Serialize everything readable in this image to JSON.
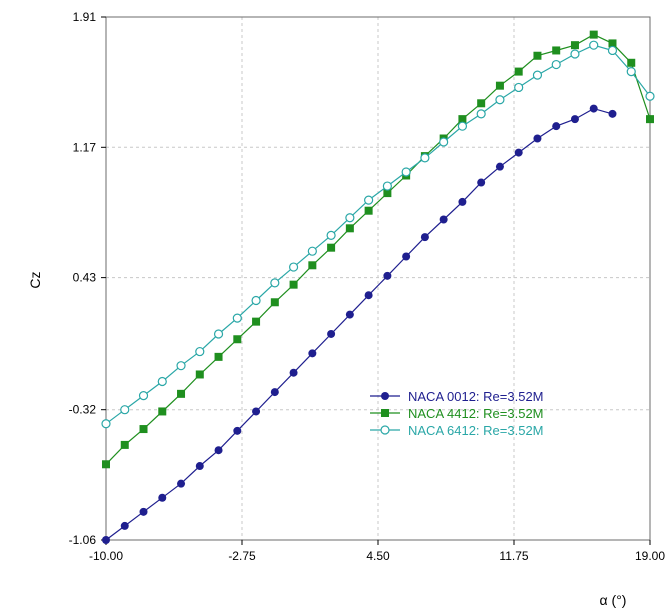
{
  "chart_data": {
    "type": "line",
    "title": "",
    "xlabel": "α (°)",
    "ylabel": "Cz",
    "xlim": [
      -10.0,
      19.0
    ],
    "ylim": [
      -1.06,
      1.91
    ],
    "xticks": [
      "-10.00",
      "-2.75",
      "4.50",
      "11.75",
      "19.00"
    ],
    "yticks": [
      "1.91",
      "1.17",
      "0.43",
      "-0.32",
      "-1.06"
    ],
    "grid": true,
    "legend_position": "lower-right",
    "series": [
      {
        "name": "NACA 0012: Re=3.52M",
        "color": "#1f1f8f",
        "marker": "filled-circle",
        "x": [
          -10,
          -9,
          -8,
          -7,
          -6,
          -5,
          -4,
          -3,
          -2,
          -1,
          0,
          1,
          2,
          3,
          4,
          5,
          6,
          7,
          8,
          9,
          10,
          11,
          12,
          13,
          14,
          15,
          16,
          17
        ],
        "y": [
          -1.06,
          -0.98,
          -0.9,
          -0.82,
          -0.74,
          -0.64,
          -0.55,
          -0.44,
          -0.33,
          -0.22,
          -0.11,
          0.0,
          0.11,
          0.22,
          0.33,
          0.44,
          0.55,
          0.66,
          0.76,
          0.86,
          0.97,
          1.06,
          1.14,
          1.22,
          1.29,
          1.33,
          1.39,
          1.36
        ]
      },
      {
        "name": "NACA 4412: Re=3.52M",
        "color": "#1f8f1f",
        "marker": "filled-square",
        "x": [
          -10,
          -9,
          -8,
          -7,
          -6,
          -5,
          -4,
          -3,
          -2,
          -1,
          0,
          1,
          2,
          3,
          4,
          5,
          6,
          7,
          8,
          9,
          10,
          11,
          12,
          13,
          14,
          15,
          16,
          17,
          18,
          19
        ],
        "y": [
          -0.63,
          -0.52,
          -0.43,
          -0.33,
          -0.23,
          -0.12,
          -0.02,
          0.08,
          0.18,
          0.29,
          0.39,
          0.5,
          0.6,
          0.71,
          0.81,
          0.91,
          1.01,
          1.12,
          1.22,
          1.33,
          1.42,
          1.52,
          1.6,
          1.69,
          1.72,
          1.75,
          1.81,
          1.76,
          1.65,
          1.33
        ]
      },
      {
        "name": "NACA 6412: Re=3.52M",
        "color": "#2aa7a7",
        "marker": "hollow-circle",
        "x": [
          -10,
          -9,
          -8,
          -7,
          -6,
          -5,
          -4,
          -3,
          -2,
          -1,
          0,
          1,
          2,
          3,
          4,
          5,
          6,
          7,
          8,
          9,
          10,
          11,
          12,
          13,
          14,
          15,
          16,
          17,
          18,
          19
        ],
        "y": [
          -0.4,
          -0.32,
          -0.24,
          -0.16,
          -0.07,
          0.01,
          0.11,
          0.2,
          0.3,
          0.4,
          0.49,
          0.58,
          0.67,
          0.77,
          0.87,
          0.95,
          1.03,
          1.11,
          1.2,
          1.29,
          1.36,
          1.44,
          1.51,
          1.58,
          1.64,
          1.7,
          1.75,
          1.72,
          1.6,
          1.46
        ]
      }
    ]
  }
}
